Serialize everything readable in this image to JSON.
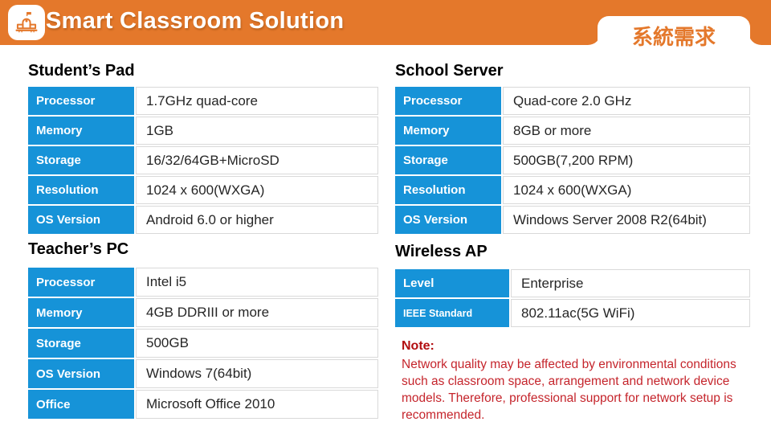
{
  "header": {
    "title": "Smart Classroom Solution",
    "tab_label": "系統需求",
    "icon": "school-building-icon"
  },
  "colors": {
    "brand_orange": "#E4782B",
    "table_label_blue": "#1693D8",
    "table_border_gray": "#D9D9D9",
    "note_title_red": "#B20E10",
    "note_body_red": "#C5252C"
  },
  "sections": [
    {
      "title": "Student’s Pad",
      "rows": [
        {
          "label": "Processor",
          "value": "1.7GHz quad-core"
        },
        {
          "label": "Memory",
          "value": "1GB"
        },
        {
          "label": "Storage",
          "value": "16/32/64GB+MicroSD"
        },
        {
          "label": "Resolution",
          "value": "1024 x 600(WXGA)"
        },
        {
          "label": "OS Version",
          "value": "Android 6.0 or higher"
        }
      ]
    },
    {
      "title": "School Server",
      "rows": [
        {
          "label": "Processor",
          "value": "Quad-core 2.0 GHz"
        },
        {
          "label": "Memory",
          "value": "8GB or more"
        },
        {
          "label": "Storage",
          "value": "500GB(7,200 RPM)"
        },
        {
          "label": "Resolution",
          "value": "1024 x 600(WXGA)"
        },
        {
          "label": "OS Version",
          "value": "Windows Server 2008 R2(64bit)"
        }
      ]
    },
    {
      "title": "Teacher’s PC",
      "rows": [
        {
          "label": "Processor",
          "value": "Intel i5"
        },
        {
          "label": "Memory",
          "value": "4GB DDRIII or more"
        },
        {
          "label": "Storage",
          "value": "500GB"
        },
        {
          "label": "OS Version",
          "value": "Windows 7(64bit)"
        },
        {
          "label": "Office",
          "value": "Microsoft Office 2010"
        }
      ]
    },
    {
      "title": "Wireless AP",
      "rows": [
        {
          "label": "Level",
          "value": "Enterprise"
        },
        {
          "label": "IEEE Standard",
          "value": "802.11ac(5G WiFi)",
          "small": true
        }
      ]
    }
  ],
  "note": {
    "title": "Note:",
    "body": "Network quality may be affected by environmental conditions such as classroom space, arrangement and network device models. Therefore, professional support for network setup is recommended."
  }
}
